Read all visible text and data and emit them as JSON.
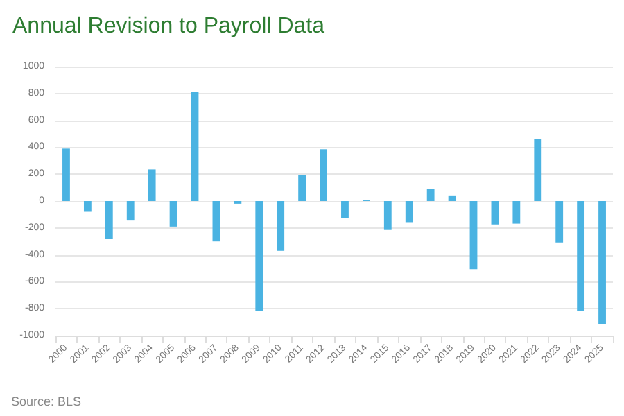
{
  "chart_data": {
    "type": "bar",
    "title": "Annual Revision to Payroll Data",
    "categories": [
      "2000",
      "2001",
      "2002",
      "2003",
      "2004",
      "2005",
      "2006",
      "2007",
      "2008",
      "2009",
      "2010",
      "2011",
      "2012",
      "2013",
      "2014",
      "2015",
      "2016",
      "2017",
      "2018",
      "2019",
      "2020",
      "2021",
      "2022",
      "2023",
      "2024",
      "2025"
    ],
    "values": [
      390,
      -80,
      -280,
      -145,
      235,
      -190,
      810,
      -300,
      -20,
      -820,
      -370,
      195,
      385,
      -125,
      5,
      -215,
      -157,
      90,
      42,
      -506,
      -174,
      -168,
      462,
      -308,
      -820,
      -915
    ],
    "color": "#4ab3e2",
    "ylim": [
      -1000,
      1000
    ],
    "yticks": [
      -1000,
      -800,
      -600,
      -400,
      -200,
      0,
      200,
      400,
      600,
      800,
      1000
    ],
    "grid": "y",
    "annotations": [
      "Source: BLS"
    ]
  }
}
